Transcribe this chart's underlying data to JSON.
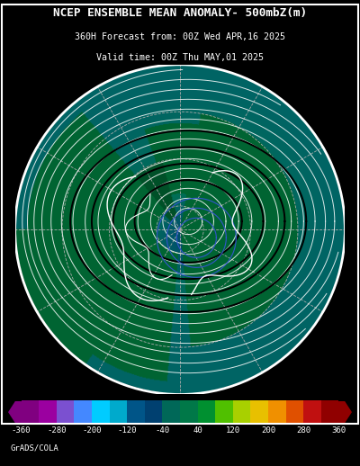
{
  "title_line1": "NCEP ENSEMBLE MEAN ANOMALY- 500mbZ(m)",
  "title_line2": "360H Forecast from: 00Z Wed APR,16 2025",
  "title_line3": "Valid time: 00Z Thu MAY,01 2025",
  "credit": "GrADS/COLA",
  "background_color": "#000000",
  "ocean_color": [
    0,
    100,
    100
  ],
  "land_color_dark": [
    0,
    80,
    50
  ],
  "land_color_mid": [
    0,
    110,
    60
  ],
  "fig_width": 4.0,
  "fig_height": 5.18,
  "dpi": 100,
  "cbar_colors": [
    "#800080",
    "#9B00A0",
    "#7B50D0",
    "#4488FF",
    "#00CCFF",
    "#00AACC",
    "#005588",
    "#004070",
    "#006858",
    "#007848",
    "#009030",
    "#50C000",
    "#A8D000",
    "#E8C000",
    "#F09000",
    "#E05000",
    "#C01010",
    "#900000"
  ],
  "cbar_bounds": [
    -360,
    -320,
    -280,
    -240,
    -200,
    -160,
    -120,
    -80,
    -40,
    0,
    40,
    80,
    120,
    160,
    200,
    240,
    280,
    320,
    360
  ],
  "cbar_tick_vals": [
    -360,
    -280,
    -200,
    -120,
    -40,
    40,
    120,
    200,
    280,
    360
  ]
}
